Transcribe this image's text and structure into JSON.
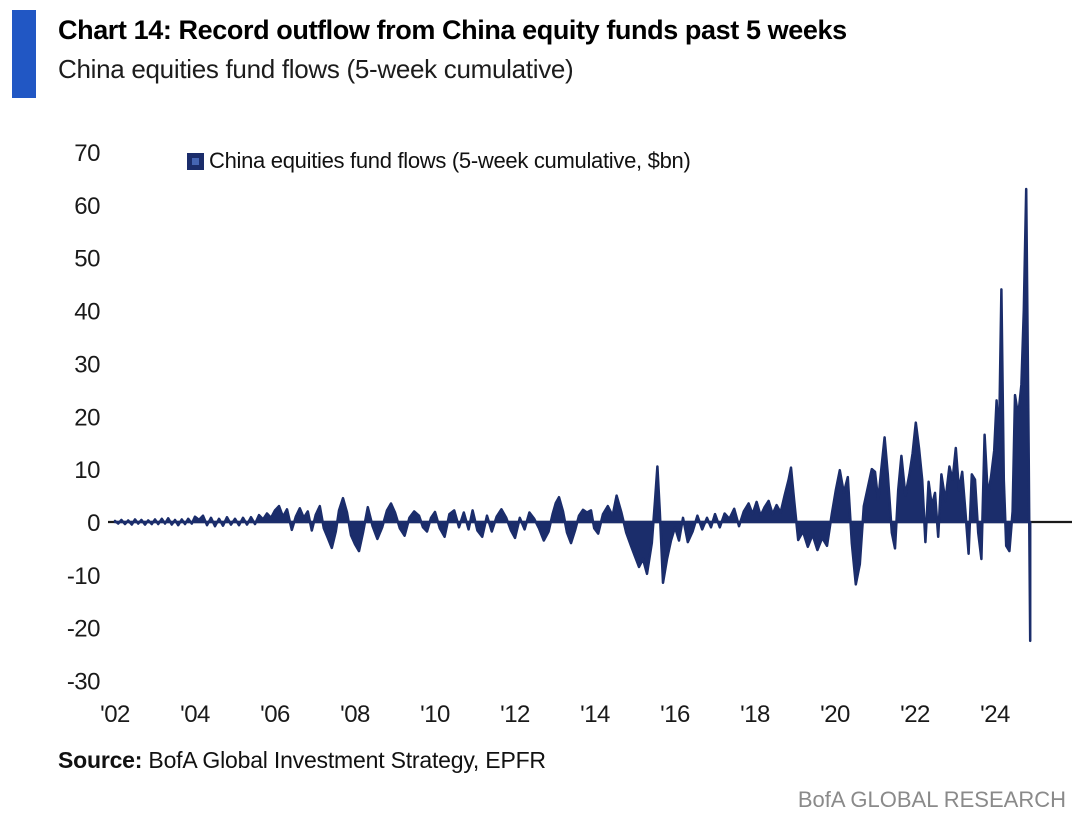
{
  "header": {
    "title": "Chart 14: Record outflow from China equity funds past 5 weeks",
    "subtitle": "China equities fund flows (5-week cumulative)"
  },
  "legend": {
    "label": "China equities fund flows (5-week cumulative, $bn)"
  },
  "source": {
    "prefix": "Source:",
    "text": " BofA Global Investment Strategy, EPFR"
  },
  "footer": {
    "brand": "BofA GLOBAL RESEARCH"
  },
  "colors": {
    "accent_bar": "#2157c4",
    "series": "#1b2d6b",
    "legend_marker_outer": "#1b2d6b",
    "legend_marker_inner": "#4565b3",
    "axis_line": "#1a1a1a",
    "tick_text": "#1a1a1a",
    "footer_text": "#8a8a8a"
  },
  "chart_data": {
    "type": "area",
    "title": "China equities fund flows (5-week cumulative)",
    "units": "$bn",
    "xlabel": "",
    "ylabel": "",
    "xlim": [
      2002,
      2025.2
    ],
    "ylim": [
      -30,
      70
    ],
    "grid": false,
    "legend_position": "top-left",
    "x_ticks": [
      "'02",
      "'04",
      "'06",
      "'08",
      "'10",
      "'12",
      "'14",
      "'16",
      "'18",
      "'20",
      "'22",
      "'24"
    ],
    "x_tick_years": [
      2002,
      2004,
      2006,
      2008,
      2010,
      2012,
      2014,
      2016,
      2018,
      2020,
      2022,
      2024
    ],
    "y_ticks": [
      70,
      60,
      50,
      40,
      30,
      20,
      10,
      0,
      -10,
      -20,
      -30
    ],
    "series": [
      {
        "name": "China equities fund flows (5-week cumulative, $bn)",
        "points": [
          [
            2002.0,
            0.2
          ],
          [
            2002.08,
            -0.3
          ],
          [
            2002.16,
            0.4
          ],
          [
            2002.25,
            -0.4
          ],
          [
            2002.33,
            0.3
          ],
          [
            2002.42,
            -0.5
          ],
          [
            2002.5,
            0.5
          ],
          [
            2002.58,
            -0.3
          ],
          [
            2002.66,
            0.4
          ],
          [
            2002.75,
            -0.5
          ],
          [
            2002.83,
            0.3
          ],
          [
            2002.92,
            -0.4
          ],
          [
            2003.0,
            0.5
          ],
          [
            2003.08,
            -0.4
          ],
          [
            2003.17,
            0.6
          ],
          [
            2003.25,
            -0.3
          ],
          [
            2003.33,
            0.7
          ],
          [
            2003.42,
            -0.5
          ],
          [
            2003.5,
            0.4
          ],
          [
            2003.58,
            -0.6
          ],
          [
            2003.67,
            0.5
          ],
          [
            2003.75,
            -0.4
          ],
          [
            2003.83,
            0.6
          ],
          [
            2003.92,
            -0.3
          ],
          [
            2004.0,
            1.0
          ],
          [
            2004.1,
            0.4
          ],
          [
            2004.2,
            1.2
          ],
          [
            2004.3,
            -0.6
          ],
          [
            2004.4,
            0.8
          ],
          [
            2004.5,
            -0.8
          ],
          [
            2004.6,
            0.6
          ],
          [
            2004.7,
            -0.7
          ],
          [
            2004.8,
            0.9
          ],
          [
            2004.9,
            -0.5
          ],
          [
            2005.0,
            0.6
          ],
          [
            2005.1,
            -0.6
          ],
          [
            2005.2,
            0.8
          ],
          [
            2005.3,
            -0.5
          ],
          [
            2005.4,
            0.9
          ],
          [
            2005.5,
            -0.4
          ],
          [
            2005.6,
            1.3
          ],
          [
            2005.7,
            0.5
          ],
          [
            2005.8,
            1.6
          ],
          [
            2005.9,
            0.8
          ],
          [
            2006.0,
            2.2
          ],
          [
            2006.1,
            3.0
          ],
          [
            2006.2,
            1.0
          ],
          [
            2006.3,
            2.4
          ],
          [
            2006.42,
            -1.5
          ],
          [
            2006.52,
            1.0
          ],
          [
            2006.62,
            2.6
          ],
          [
            2006.72,
            0.8
          ],
          [
            2006.82,
            2.0
          ],
          [
            2006.92,
            -1.6
          ],
          [
            2007.02,
            1.4
          ],
          [
            2007.12,
            3.0
          ],
          [
            2007.22,
            -1.2
          ],
          [
            2007.32,
            -3.0
          ],
          [
            2007.42,
            -4.9
          ],
          [
            2007.52,
            -1.8
          ],
          [
            2007.6,
            2.2
          ],
          [
            2007.7,
            4.5
          ],
          [
            2007.8,
            1.8
          ],
          [
            2007.9,
            -2.5
          ],
          [
            2008.0,
            -4.2
          ],
          [
            2008.1,
            -5.5
          ],
          [
            2008.2,
            -2.0
          ],
          [
            2008.32,
            2.8
          ],
          [
            2008.44,
            -0.8
          ],
          [
            2008.56,
            -3.2
          ],
          [
            2008.68,
            -1.0
          ],
          [
            2008.8,
            2.2
          ],
          [
            2008.9,
            3.5
          ],
          [
            2009.0,
            1.8
          ],
          [
            2009.12,
            -1.2
          ],
          [
            2009.24,
            -2.6
          ],
          [
            2009.36,
            0.8
          ],
          [
            2009.48,
            2.0
          ],
          [
            2009.6,
            1.2
          ],
          [
            2009.7,
            -1.0
          ],
          [
            2009.8,
            -1.8
          ],
          [
            2009.9,
            0.8
          ],
          [
            2010.0,
            1.9
          ],
          [
            2010.12,
            -1.2
          ],
          [
            2010.24,
            -2.8
          ],
          [
            2010.36,
            1.5
          ],
          [
            2010.48,
            2.2
          ],
          [
            2010.6,
            -1.0
          ],
          [
            2010.72,
            1.8
          ],
          [
            2010.84,
            -1.4
          ],
          [
            2010.94,
            2.2
          ],
          [
            2011.06,
            -1.6
          ],
          [
            2011.18,
            -2.8
          ],
          [
            2011.3,
            1.2
          ],
          [
            2011.42,
            -1.8
          ],
          [
            2011.54,
            1.0
          ],
          [
            2011.66,
            2.4
          ],
          [
            2011.78,
            0.8
          ],
          [
            2011.9,
            -1.6
          ],
          [
            2012.0,
            -3.0
          ],
          [
            2012.12,
            0.8
          ],
          [
            2012.24,
            -1.4
          ],
          [
            2012.36,
            1.8
          ],
          [
            2012.48,
            0.6
          ],
          [
            2012.6,
            -1.2
          ],
          [
            2012.72,
            -3.5
          ],
          [
            2012.84,
            -1.8
          ],
          [
            2012.94,
            1.5
          ],
          [
            2013.02,
            3.6
          ],
          [
            2013.1,
            4.7
          ],
          [
            2013.2,
            2.0
          ],
          [
            2013.3,
            -2.0
          ],
          [
            2013.4,
            -4.0
          ],
          [
            2013.5,
            -1.6
          ],
          [
            2013.6,
            1.2
          ],
          [
            2013.7,
            2.3
          ],
          [
            2013.8,
            1.8
          ],
          [
            2013.9,
            2.2
          ],
          [
            2013.98,
            -1.2
          ],
          [
            2014.08,
            -2.2
          ],
          [
            2014.2,
            1.5
          ],
          [
            2014.32,
            3.0
          ],
          [
            2014.44,
            1.2
          ],
          [
            2014.54,
            5.0
          ],
          [
            2014.66,
            1.8
          ],
          [
            2014.78,
            -2.0
          ],
          [
            2014.9,
            -4.5
          ],
          [
            2015.0,
            -6.5
          ],
          [
            2015.1,
            -8.5
          ],
          [
            2015.2,
            -7.0
          ],
          [
            2015.3,
            -9.8
          ],
          [
            2015.42,
            -4.0
          ],
          [
            2015.5,
            4.0
          ],
          [
            2015.56,
            10.5
          ],
          [
            2015.62,
            2.0
          ],
          [
            2015.7,
            -11.5
          ],
          [
            2015.8,
            -7.0
          ],
          [
            2015.9,
            -3.5
          ],
          [
            2016.0,
            -1.0
          ],
          [
            2016.1,
            -3.5
          ],
          [
            2016.2,
            0.8
          ],
          [
            2016.32,
            -3.8
          ],
          [
            2016.44,
            -1.8
          ],
          [
            2016.56,
            1.2
          ],
          [
            2016.68,
            -1.4
          ],
          [
            2016.8,
            0.8
          ],
          [
            2016.9,
            -1.0
          ],
          [
            2017.0,
            1.5
          ],
          [
            2017.12,
            -1.0
          ],
          [
            2017.24,
            1.6
          ],
          [
            2017.36,
            0.6
          ],
          [
            2017.48,
            2.5
          ],
          [
            2017.6,
            -0.8
          ],
          [
            2017.72,
            2.0
          ],
          [
            2017.84,
            3.5
          ],
          [
            2017.94,
            1.5
          ],
          [
            2018.04,
            3.8
          ],
          [
            2018.14,
            1.2
          ],
          [
            2018.24,
            2.8
          ],
          [
            2018.34,
            4.0
          ],
          [
            2018.44,
            1.5
          ],
          [
            2018.54,
            3.2
          ],
          [
            2018.64,
            1.8
          ],
          [
            2018.74,
            5.0
          ],
          [
            2018.84,
            8.0
          ],
          [
            2018.9,
            10.3
          ],
          [
            2018.98,
            4.0
          ],
          [
            2019.08,
            -3.4
          ],
          [
            2019.2,
            -1.8
          ],
          [
            2019.32,
            -4.7
          ],
          [
            2019.44,
            -2.4
          ],
          [
            2019.56,
            -5.3
          ],
          [
            2019.68,
            -3.0
          ],
          [
            2019.8,
            -4.5
          ],
          [
            2019.92,
            1.5
          ],
          [
            2020.02,
            6.0
          ],
          [
            2020.12,
            9.8
          ],
          [
            2020.22,
            5.5
          ],
          [
            2020.32,
            8.5
          ],
          [
            2020.42,
            -4.0
          ],
          [
            2020.52,
            -11.8
          ],
          [
            2020.62,
            -8.0
          ],
          [
            2020.72,
            3.0
          ],
          [
            2020.82,
            6.5
          ],
          [
            2020.92,
            10.0
          ],
          [
            2021.0,
            9.5
          ],
          [
            2021.08,
            4.0
          ],
          [
            2021.16,
            10.2
          ],
          [
            2021.24,
            16.0
          ],
          [
            2021.32,
            9.0
          ],
          [
            2021.42,
            -2.0
          ],
          [
            2021.5,
            -5.0
          ],
          [
            2021.58,
            6.0
          ],
          [
            2021.66,
            12.5
          ],
          [
            2021.76,
            5.0
          ],
          [
            2021.86,
            9.0
          ],
          [
            2021.94,
            13.0
          ],
          [
            2022.02,
            18.8
          ],
          [
            2022.1,
            14.0
          ],
          [
            2022.18,
            8.0
          ],
          [
            2022.26,
            -3.8
          ],
          [
            2022.34,
            7.6
          ],
          [
            2022.42,
            3.0
          ],
          [
            2022.5,
            5.5
          ],
          [
            2022.58,
            -2.8
          ],
          [
            2022.66,
            9.0
          ],
          [
            2022.76,
            4.0
          ],
          [
            2022.86,
            10.5
          ],
          [
            2022.94,
            8.0
          ],
          [
            2023.02,
            14.0
          ],
          [
            2023.1,
            6.0
          ],
          [
            2023.18,
            9.5
          ],
          [
            2023.26,
            2.0
          ],
          [
            2023.34,
            -6.0
          ],
          [
            2023.42,
            9.0
          ],
          [
            2023.5,
            8.0
          ],
          [
            2023.58,
            -2.0
          ],
          [
            2023.66,
            -7.0
          ],
          [
            2023.74,
            16.5
          ],
          [
            2023.82,
            5.0
          ],
          [
            2023.9,
            8.5
          ],
          [
            2023.98,
            13.5
          ],
          [
            2024.04,
            23.0
          ],
          [
            2024.1,
            15.0
          ],
          [
            2024.16,
            44.0
          ],
          [
            2024.22,
            8.0
          ],
          [
            2024.28,
            -4.5
          ],
          [
            2024.36,
            -5.5
          ],
          [
            2024.44,
            2.0
          ],
          [
            2024.5,
            24.0
          ],
          [
            2024.58,
            20.0
          ],
          [
            2024.66,
            26.0
          ],
          [
            2024.72,
            40.0
          ],
          [
            2024.78,
            63.0
          ],
          [
            2024.84,
            15.0
          ],
          [
            2024.88,
            -22.5
          ]
        ]
      }
    ]
  }
}
